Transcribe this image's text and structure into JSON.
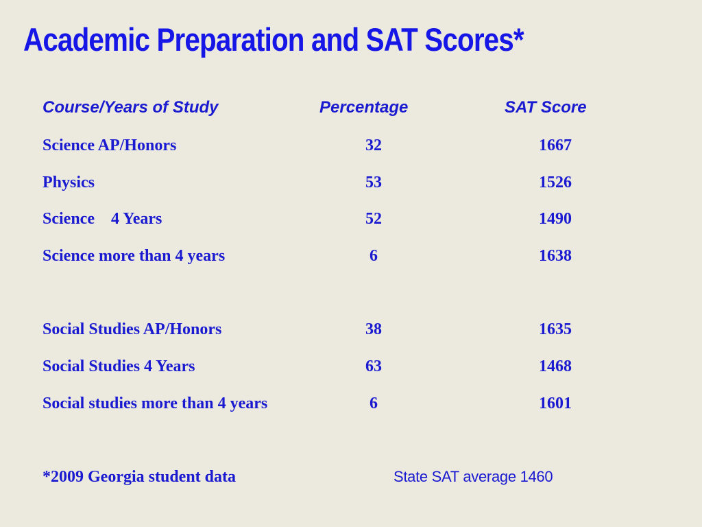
{
  "slide": {
    "title": "Academic Preparation and SAT Scores*",
    "footnote": "*2009 Georgia student data",
    "state_average": "State SAT average 1460"
  },
  "chart_data": {
    "type": "table",
    "title": "Academic Preparation and SAT Scores*",
    "columns": [
      "Course/Years of Study",
      "Percentage",
      "SAT Score"
    ],
    "rows": [
      {
        "course": "Science AP/Honors",
        "percentage": "32",
        "sat": "1667"
      },
      {
        "course": "Physics",
        "percentage": "53",
        "sat": "1526"
      },
      {
        "course": "Science    4 Years",
        "percentage": "52",
        "sat": "1490"
      },
      {
        "course": "Science more than 4 years",
        "percentage": "6",
        "sat": "1638"
      },
      {
        "course": "Social Studies AP/Honors",
        "percentage": "38",
        "sat": "1635"
      },
      {
        "course": "Social Studies 4 Years",
        "percentage": "63",
        "sat": "1468"
      },
      {
        "course": "Social studies more than 4 years",
        "percentage": "6",
        "sat": "1601"
      }
    ],
    "colors": {
      "title": "#1616e6",
      "text": "#1a1ad0",
      "background": "#ece9df"
    }
  }
}
